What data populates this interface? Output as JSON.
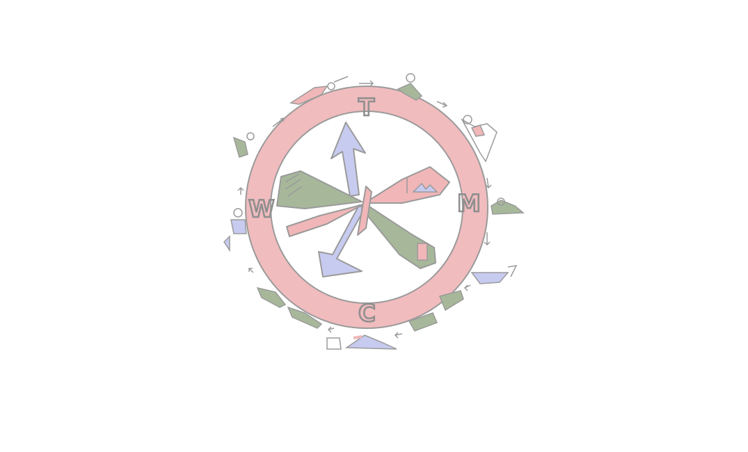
{
  "wheel": {
    "labels": {
      "top": "T",
      "right": "M",
      "bottom": "C",
      "left": "W"
    }
  },
  "colors": {
    "ring": "#f1bcbe",
    "outline": "#9a9a9a",
    "green": "#a7b89a",
    "blue": "#c7cbf0",
    "red_fill": "#f0b6b8",
    "background": "#ffffff"
  }
}
